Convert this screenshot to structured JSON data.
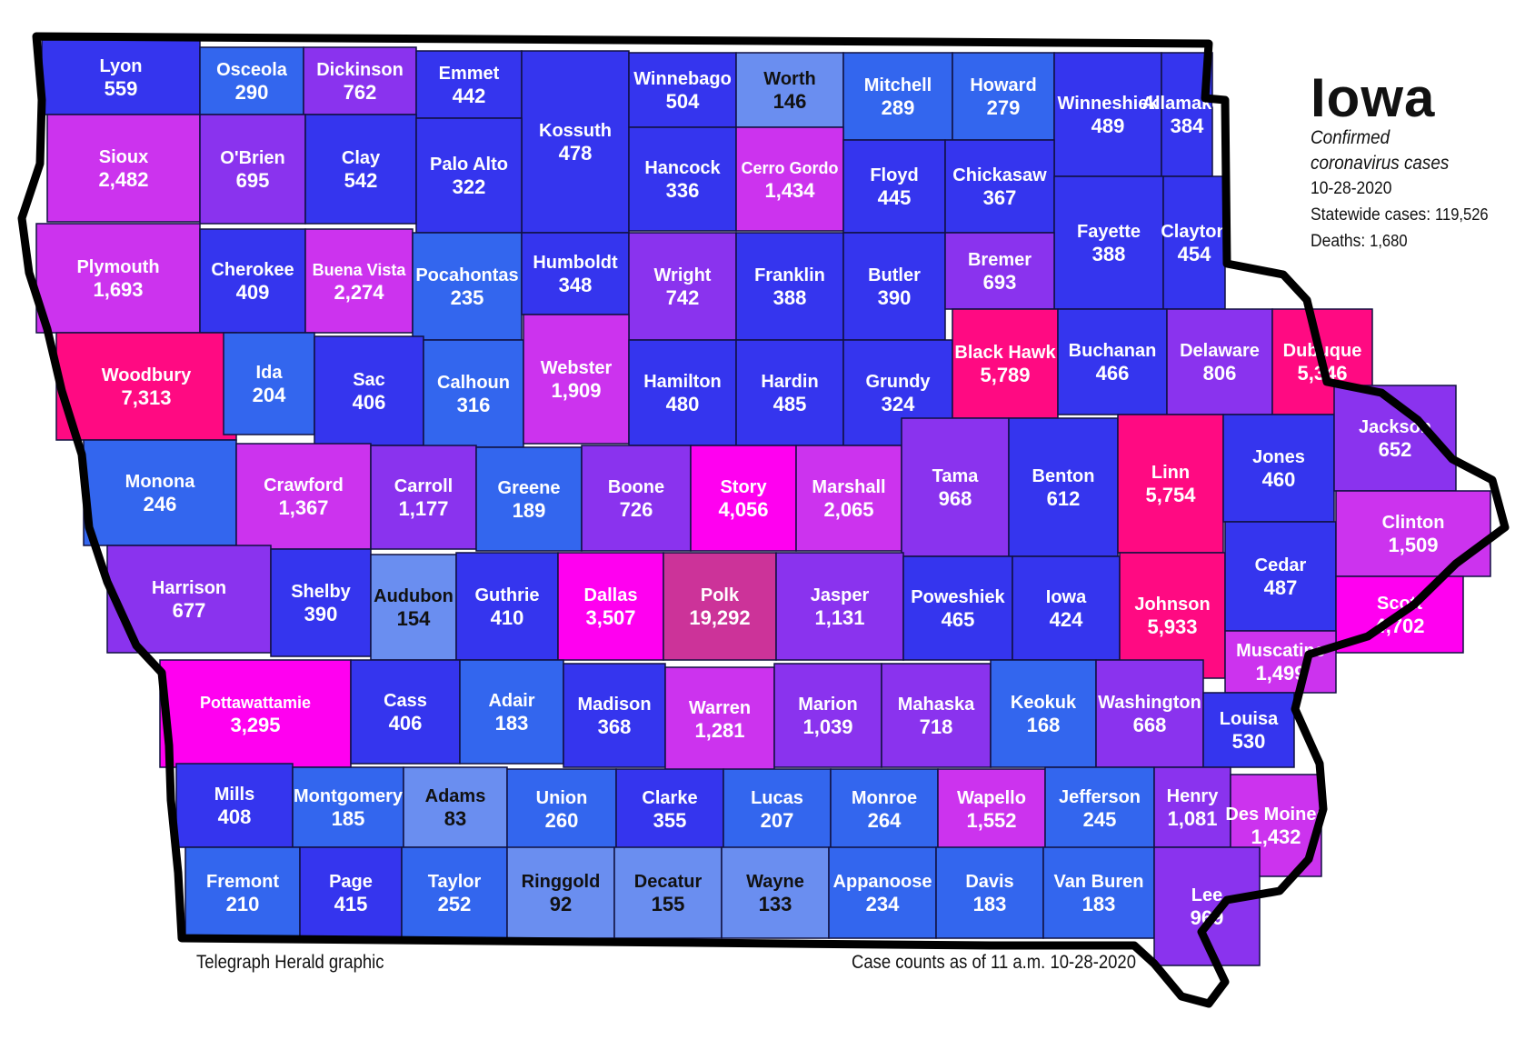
{
  "title": "Iowa",
  "subtitle_line1": "Confirmed",
  "subtitle_line2": "coronavirus cases",
  "date": "10-28-2020",
  "statewide_label": "Statewide cases:",
  "statewide_value": "119,526",
  "deaths_label": "Deaths:",
  "deaths_value": "1,680",
  "credit": "Telegraph Herald graphic",
  "asof": "Case counts as of  11 a.m.  10-28-2020",
  "colors": {
    "very_light": "#6a8ef0",
    "light": "#3366ee",
    "blue": "#3535ee",
    "purple": "#8a33ee",
    "magenta": "#cc33ee",
    "pink": "#ff00f0",
    "red": "#ff0a82",
    "polk": "#cc3399",
    "outline": "#000000"
  },
  "counties": [
    {
      "name": "Lyon",
      "cases": "559",
      "color": "blue"
    },
    {
      "name": "Osceola",
      "cases": "290",
      "color": "light"
    },
    {
      "name": "Dickinson",
      "cases": "762",
      "color": "purple"
    },
    {
      "name": "Emmet",
      "cases": "442",
      "color": "blue"
    },
    {
      "name": "Kossuth",
      "cases": "478",
      "color": "blue"
    },
    {
      "name": "Winnebago",
      "cases": "504",
      "color": "blue"
    },
    {
      "name": "Worth",
      "cases": "146",
      "color": "very_light"
    },
    {
      "name": "Mitchell",
      "cases": "289",
      "color": "light"
    },
    {
      "name": "Howard",
      "cases": "279",
      "color": "light"
    },
    {
      "name": "Winneshiek",
      "cases": "489",
      "color": "blue"
    },
    {
      "name": "Allamakee",
      "cases": "384",
      "color": "blue"
    },
    {
      "name": "Sioux",
      "cases": "2,482",
      "color": "magenta"
    },
    {
      "name": "O'Brien",
      "cases": "695",
      "color": "purple"
    },
    {
      "name": "Clay",
      "cases": "542",
      "color": "blue"
    },
    {
      "name": "Palo Alto",
      "cases": "322",
      "color": "blue"
    },
    {
      "name": "Hancock",
      "cases": "336",
      "color": "blue"
    },
    {
      "name": "Cerro Gordo",
      "cases": "1,434",
      "color": "magenta"
    },
    {
      "name": "Floyd",
      "cases": "445",
      "color": "blue"
    },
    {
      "name": "Chickasaw",
      "cases": "367",
      "color": "blue"
    },
    {
      "name": "Fayette",
      "cases": "388",
      "color": "blue"
    },
    {
      "name": "Clayton",
      "cases": "454",
      "color": "blue"
    },
    {
      "name": "Plymouth",
      "cases": "1,693",
      "color": "magenta"
    },
    {
      "name": "Cherokee",
      "cases": "409",
      "color": "blue"
    },
    {
      "name": "Buena Vista",
      "cases": "2,274",
      "color": "magenta"
    },
    {
      "name": "Pocahontas",
      "cases": "235",
      "color": "light"
    },
    {
      "name": "Humboldt",
      "cases": "348",
      "color": "blue"
    },
    {
      "name": "Wright",
      "cases": "742",
      "color": "purple"
    },
    {
      "name": "Franklin",
      "cases": "388",
      "color": "blue"
    },
    {
      "name": "Butler",
      "cases": "390",
      "color": "blue"
    },
    {
      "name": "Bremer",
      "cases": "693",
      "color": "purple"
    },
    {
      "name": "Woodbury",
      "cases": "7,313",
      "color": "red"
    },
    {
      "name": "Ida",
      "cases": "204",
      "color": "light"
    },
    {
      "name": "Sac",
      "cases": "406",
      "color": "blue"
    },
    {
      "name": "Calhoun",
      "cases": "316",
      "color": "light"
    },
    {
      "name": "Webster",
      "cases": "1,909",
      "color": "magenta"
    },
    {
      "name": "Hamilton",
      "cases": "480",
      "color": "blue"
    },
    {
      "name": "Hardin",
      "cases": "485",
      "color": "blue"
    },
    {
      "name": "Grundy",
      "cases": "324",
      "color": "blue"
    },
    {
      "name": "Black Hawk",
      "cases": "5,789",
      "color": "red"
    },
    {
      "name": "Buchanan",
      "cases": "466",
      "color": "blue"
    },
    {
      "name": "Delaware",
      "cases": "806",
      "color": "purple"
    },
    {
      "name": "Dubuque",
      "cases": "5,346",
      "color": "red"
    },
    {
      "name": "Monona",
      "cases": "246",
      "color": "light"
    },
    {
      "name": "Crawford",
      "cases": "1,367",
      "color": "magenta"
    },
    {
      "name": "Carroll",
      "cases": "1,177",
      "color": "purple"
    },
    {
      "name": "Greene",
      "cases": "189",
      "color": "light"
    },
    {
      "name": "Boone",
      "cases": "726",
      "color": "purple"
    },
    {
      "name": "Story",
      "cases": "4,056",
      "color": "pink"
    },
    {
      "name": "Marshall",
      "cases": "2,065",
      "color": "magenta"
    },
    {
      "name": "Tama",
      "cases": "968",
      "color": "purple"
    },
    {
      "name": "Benton",
      "cases": "612",
      "color": "blue"
    },
    {
      "name": "Linn",
      "cases": "5,754",
      "color": "red"
    },
    {
      "name": "Jones",
      "cases": "460",
      "color": "blue"
    },
    {
      "name": "Jackson",
      "cases": "652",
      "color": "purple"
    },
    {
      "name": "Harrison",
      "cases": "677",
      "color": "purple"
    },
    {
      "name": "Shelby",
      "cases": "390",
      "color": "blue"
    },
    {
      "name": "Audubon",
      "cases": "154",
      "color": "very_light"
    },
    {
      "name": "Guthrie",
      "cases": "410",
      "color": "blue"
    },
    {
      "name": "Dallas",
      "cases": "3,507",
      "color": "pink"
    },
    {
      "name": "Polk",
      "cases": "19,292",
      "color": "polk"
    },
    {
      "name": "Jasper",
      "cases": "1,131",
      "color": "purple"
    },
    {
      "name": "Poweshiek",
      "cases": "465",
      "color": "blue"
    },
    {
      "name": "Iowa",
      "cases": "424",
      "color": "blue"
    },
    {
      "name": "Johnson",
      "cases": "5,933",
      "color": "red"
    },
    {
      "name": "Cedar",
      "cases": "487",
      "color": "blue"
    },
    {
      "name": "Clinton",
      "cases": "1,509",
      "color": "magenta"
    },
    {
      "name": "Scott",
      "cases": "4,702",
      "color": "pink"
    },
    {
      "name": "Muscatine",
      "cases": "1,499",
      "color": "magenta"
    },
    {
      "name": "Pottawattamie",
      "cases": "3,295",
      "color": "pink"
    },
    {
      "name": "Cass",
      "cases": "406",
      "color": "blue"
    },
    {
      "name": "Adair",
      "cases": "183",
      "color": "light"
    },
    {
      "name": "Madison",
      "cases": "368",
      "color": "blue"
    },
    {
      "name": "Warren",
      "cases": "1,281",
      "color": "magenta"
    },
    {
      "name": "Marion",
      "cases": "1,039",
      "color": "purple"
    },
    {
      "name": "Mahaska",
      "cases": "718",
      "color": "purple"
    },
    {
      "name": "Keokuk",
      "cases": "168",
      "color": "light"
    },
    {
      "name": "Washington",
      "cases": "668",
      "color": "purple"
    },
    {
      "name": "Louisa",
      "cases": "530",
      "color": "blue"
    },
    {
      "name": "Mills",
      "cases": "408",
      "color": "blue"
    },
    {
      "name": "Montgomery",
      "cases": "185",
      "color": "light"
    },
    {
      "name": "Adams",
      "cases": "83",
      "color": "very_light"
    },
    {
      "name": "Union",
      "cases": "260",
      "color": "light"
    },
    {
      "name": "Clarke",
      "cases": "355",
      "color": "blue"
    },
    {
      "name": "Lucas",
      "cases": "207",
      "color": "light"
    },
    {
      "name": "Monroe",
      "cases": "264",
      "color": "light"
    },
    {
      "name": "Wapello",
      "cases": "1,552",
      "color": "magenta"
    },
    {
      "name": "Jefferson",
      "cases": "245",
      "color": "light"
    },
    {
      "name": "Henry",
      "cases": "1,081",
      "color": "purple"
    },
    {
      "name": "Des Moines",
      "cases": "1,432",
      "color": "magenta"
    },
    {
      "name": "Fremont",
      "cases": "210",
      "color": "light"
    },
    {
      "name": "Page",
      "cases": "415",
      "color": "blue"
    },
    {
      "name": "Taylor",
      "cases": "252",
      "color": "light"
    },
    {
      "name": "Ringgold",
      "cases": "92",
      "color": "very_light"
    },
    {
      "name": "Decatur",
      "cases": "155",
      "color": "very_light"
    },
    {
      "name": "Wayne",
      "cases": "133",
      "color": "very_light"
    },
    {
      "name": "Appanoose",
      "cases": "234",
      "color": "light"
    },
    {
      "name": "Davis",
      "cases": "183",
      "color": "light"
    },
    {
      "name": "Van Buren",
      "cases": "183",
      "color": "light"
    },
    {
      "name": "Lee",
      "cases": "969",
      "color": "purple"
    }
  ]
}
